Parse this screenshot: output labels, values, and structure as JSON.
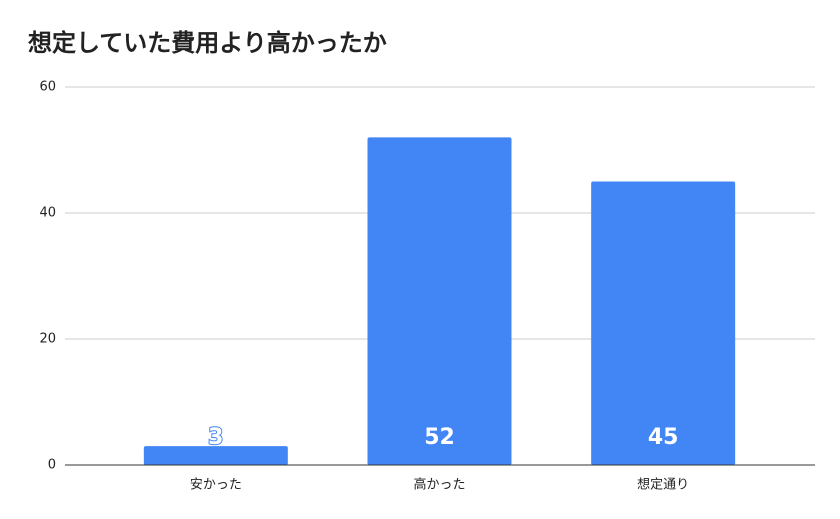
{
  "chart_data": {
    "type": "bar",
    "title": "想定していた費用より高かったか",
    "categories": [
      "安かった",
      "高かった",
      "想定通り"
    ],
    "values": [
      3,
      52,
      45
    ],
    "color": "#4285f4",
    "ylim": [
      0,
      60
    ],
    "yticks": [
      0,
      20,
      40,
      60
    ],
    "grid": true,
    "data_labels": true
  }
}
